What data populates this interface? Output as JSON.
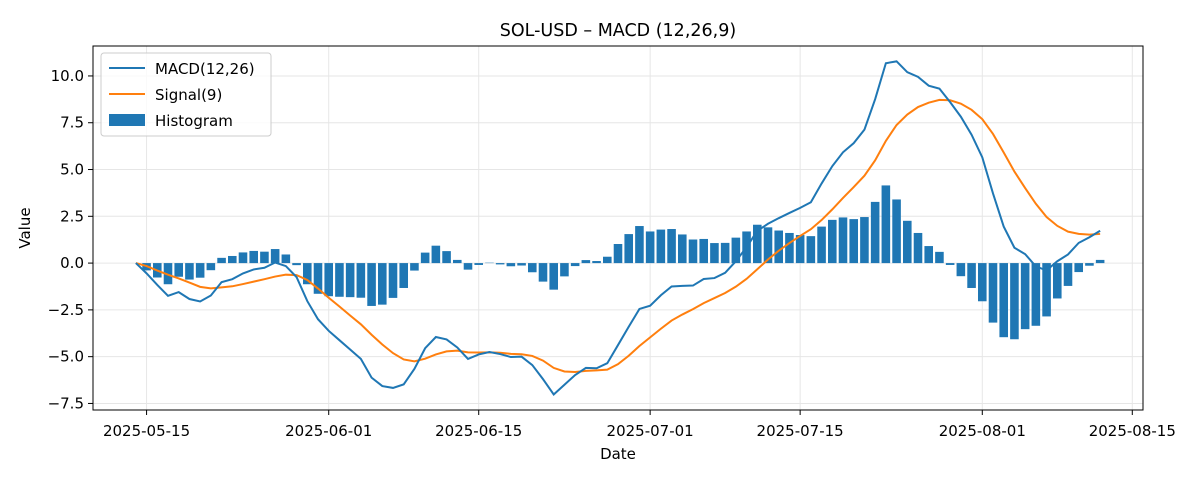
{
  "chart_data": {
    "type": "line",
    "title": "SOL-USD – MACD (12,26,9)",
    "xlabel": "Date",
    "ylabel": "Value",
    "start_date": "2025-05-14",
    "x_ticks": [
      "2025-05-15",
      "2025-06-01",
      "2025-06-15",
      "2025-07-01",
      "2025-07-15",
      "2025-08-01",
      "2025-08-15"
    ],
    "y_ticks": [
      10.0,
      7.5,
      5.0,
      2.5,
      0.0,
      -2.5,
      -5.0,
      -7.5
    ],
    "y_tick_labels": [
      "10.0",
      "7.5",
      "5.0",
      "2.5",
      "0.0",
      "−2.5",
      "−5.0",
      "−7.5"
    ],
    "xlim": [
      "2025-05-10",
      "2025-08-16"
    ],
    "ylim": [
      -7.85,
      11.6
    ],
    "grid": true,
    "legend_position": "top-left",
    "series": [
      {
        "name": "MACD(12,26)",
        "kind": "line",
        "color": "#1f77b4",
        "values": [
          0.0,
          -0.55,
          -1.17,
          -1.75,
          -1.55,
          -1.92,
          -2.05,
          -1.73,
          -1.02,
          -0.86,
          -0.55,
          -0.34,
          -0.25,
          0.03,
          -0.16,
          -0.75,
          -2.03,
          -3.0,
          -3.62,
          -4.12,
          -4.62,
          -5.12,
          -6.12,
          -6.57,
          -6.67,
          -6.48,
          -5.65,
          -4.55,
          -3.95,
          -4.08,
          -4.51,
          -5.12,
          -4.88,
          -4.75,
          -4.86,
          -5.02,
          -5.0,
          -5.45,
          -6.2,
          -7.02,
          -6.5,
          -5.98,
          -5.6,
          -5.62,
          -5.35,
          -4.38,
          -3.4,
          -2.45,
          -2.28,
          -1.72,
          -1.25,
          -1.22,
          -1.2,
          -0.85,
          -0.8,
          -0.52,
          0.1,
          0.85,
          1.72,
          2.1,
          2.4,
          2.68,
          2.95,
          3.25,
          4.25,
          5.18,
          5.92,
          6.41,
          7.13,
          8.76,
          10.68,
          10.78,
          10.2,
          9.95,
          9.48,
          9.32,
          8.6,
          7.82,
          6.86,
          5.65,
          3.72,
          1.95,
          0.82,
          0.48,
          -0.18,
          -0.39,
          0.1,
          0.46,
          1.08,
          1.38,
          1.73
        ]
      },
      {
        "name": "Signal(9)",
        "kind": "line",
        "color": "#ff7f0e",
        "values": [
          0.0,
          -0.16,
          -0.4,
          -0.62,
          -0.82,
          -1.04,
          -1.27,
          -1.35,
          -1.3,
          -1.24,
          -1.12,
          -0.99,
          -0.86,
          -0.72,
          -0.62,
          -0.64,
          -0.9,
          -1.36,
          -1.85,
          -2.32,
          -2.8,
          -3.27,
          -3.83,
          -4.35,
          -4.81,
          -5.15,
          -5.25,
          -5.11,
          -4.88,
          -4.72,
          -4.68,
          -4.77,
          -4.78,
          -4.77,
          -4.79,
          -4.85,
          -4.87,
          -4.96,
          -5.21,
          -5.6,
          -5.79,
          -5.82,
          -5.76,
          -5.73,
          -5.69,
          -5.4,
          -4.95,
          -4.43,
          -3.97,
          -3.51,
          -3.07,
          -2.75,
          -2.46,
          -2.14,
          -1.87,
          -1.6,
          -1.26,
          -0.84,
          -0.33,
          0.19,
          0.66,
          1.07,
          1.45,
          1.81,
          2.3,
          2.87,
          3.48,
          4.06,
          4.67,
          5.49,
          6.53,
          7.38,
          7.94,
          8.34,
          8.57,
          8.72,
          8.7,
          8.52,
          8.19,
          7.69,
          6.9,
          5.91,
          4.89,
          4.01,
          3.17,
          2.46,
          1.99,
          1.68,
          1.56,
          1.52,
          1.56
        ]
      },
      {
        "name": "Histogram",
        "kind": "bar",
        "color": "#1f77b4",
        "values": [
          0.0,
          -0.39,
          -0.77,
          -1.13,
          -0.73,
          -0.88,
          -0.78,
          -0.38,
          0.28,
          0.38,
          0.57,
          0.65,
          0.61,
          0.75,
          0.46,
          -0.11,
          -1.13,
          -1.64,
          -1.77,
          -1.8,
          -1.82,
          -1.85,
          -2.29,
          -2.22,
          -1.86,
          -1.33,
          -0.4,
          0.56,
          0.93,
          0.64,
          0.17,
          -0.35,
          -0.1,
          0.02,
          -0.07,
          -0.17,
          -0.13,
          -0.49,
          -0.99,
          -1.42,
          -0.71,
          -0.16,
          0.16,
          0.11,
          0.34,
          1.02,
          1.55,
          1.98,
          1.69,
          1.79,
          1.82,
          1.53,
          1.26,
          1.29,
          1.07,
          1.08,
          1.36,
          1.69,
          2.05,
          1.91,
          1.74,
          1.61,
          1.5,
          1.44,
          1.95,
          2.31,
          2.44,
          2.35,
          2.46,
          3.27,
          4.15,
          3.4,
          2.26,
          1.61,
          0.91,
          0.6,
          -0.1,
          -0.7,
          -1.33,
          -2.04,
          -3.18,
          -3.96,
          -4.07,
          -3.53,
          -3.35,
          -2.85,
          -1.89,
          -1.22,
          -0.48,
          -0.14,
          0.17
        ]
      }
    ]
  }
}
